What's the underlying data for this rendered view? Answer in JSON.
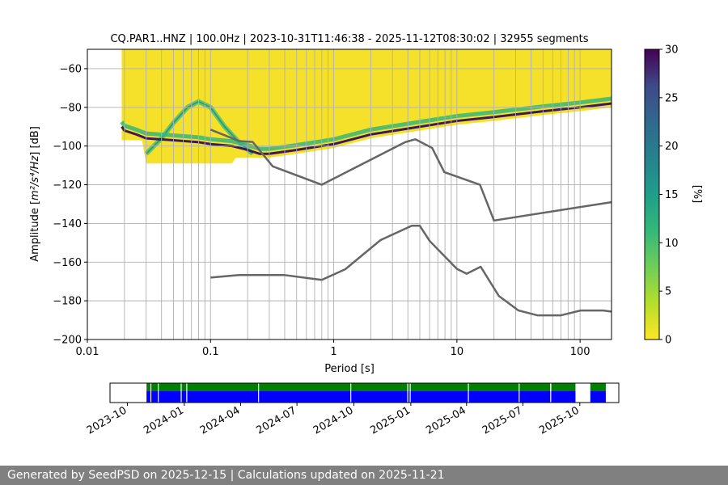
{
  "chart_data": [
    {
      "type": "heatmap",
      "title": "CQ.PAR1..HNZ | 100.0Hz | 2023-10-31T11:46:38 - 2025-11-12T08:30:02 | 32955 segments",
      "xlabel": "Period [s]",
      "ylabel_prefix": "Amplitude [",
      "ylabel_math": "m²/s⁴/Hz",
      "ylabel_suffix": "] [dB]",
      "xscale": "log",
      "xlim": [
        0.01,
        180
      ],
      "ylim": [
        -200,
        -50
      ],
      "x_ticks": [
        {
          "value": 0.01,
          "label": "0.01"
        },
        {
          "value": 0.1,
          "label": "0.1"
        },
        {
          "value": 1,
          "label": "1"
        },
        {
          "value": 10,
          "label": "10"
        },
        {
          "value": 100,
          "label": "100"
        }
      ],
      "y_ticks": [
        {
          "value": -60,
          "label": "−60"
        },
        {
          "value": -80,
          "label": "−80"
        },
        {
          "value": -100,
          "label": "−100"
        },
        {
          "value": -120,
          "label": "−120"
        },
        {
          "value": -140,
          "label": "−140"
        },
        {
          "value": -160,
          "label": "−160"
        },
        {
          "value": -180,
          "label": "−180"
        },
        {
          "value": -200,
          "label": "−200"
        }
      ],
      "grid": true,
      "x_gridlines": [
        0.02,
        0.03,
        0.04,
        0.05,
        0.06,
        0.07,
        0.08,
        0.09,
        0.1,
        0.2,
        0.3,
        0.4,
        0.5,
        0.6,
        0.7,
        0.8,
        0.9,
        1,
        2,
        3,
        4,
        5,
        6,
        7,
        8,
        9,
        10,
        20,
        30,
        40,
        50,
        60,
        70,
        80,
        90,
        100
      ],
      "colorbar": {
        "label": "[%]",
        "range": [
          0,
          30
        ],
        "colormap": "viridis_r",
        "ticks": [
          {
            "value": 0,
            "label": "0"
          },
          {
            "value": 5,
            "label": "5"
          },
          {
            "value": 10,
            "label": "10"
          },
          {
            "value": 15,
            "label": "15"
          },
          {
            "value": 20,
            "label": "20"
          },
          {
            "value": 25,
            "label": "25"
          },
          {
            "value": 30,
            "label": "30"
          }
        ]
      },
      "density_ridge": {
        "x": [
          0.019,
          0.02,
          0.025,
          0.03,
          0.05,
          0.08,
          0.1,
          0.15,
          0.2,
          0.25,
          0.3,
          0.5,
          1,
          2,
          5,
          10,
          20,
          50,
          100,
          180
        ],
        "y": [
          -90,
          -92,
          -94,
          -96,
          -97,
          -98,
          -99,
          -100,
          -102,
          -104,
          -104,
          -102,
          -99,
          -94,
          -90,
          -87,
          -85,
          -82,
          -80,
          -78
        ]
      },
      "series": [
        {
          "color": "#666666",
          "x": [
            0.1,
            0.17,
            0.22,
            0.32,
            0.8,
            3.8,
            4.6,
            6.3,
            7.9,
            15.4,
            20,
            180
          ],
          "y": [
            -91.5,
            -97.4,
            -97.9,
            -110.5,
            -120,
            -98,
            -96.5,
            -101,
            -113.5,
            -120,
            -138.5,
            -129
          ]
        },
        {
          "color": "#666666",
          "x": [
            0.1,
            0.17,
            0.4,
            0.8,
            1.24,
            2.4,
            4.3,
            5,
            6,
            10,
            12,
            15.6,
            21.9,
            31.6,
            45,
            70,
            101,
            154,
            180
          ],
          "y": [
            -168,
            -166.7,
            -166.7,
            -169.2,
            -163.7,
            -148.6,
            -141.2,
            -141.2,
            -149,
            -163.5,
            -166,
            -162.4,
            -177.5,
            -185,
            -187.5,
            -187.5,
            -185,
            -185,
            -185.6
          ]
        }
      ]
    },
    {
      "type": "bar",
      "x_ticks": [
        {
          "value": "2023-10-01",
          "label": "2023-10"
        },
        {
          "value": "2024-01-01",
          "label": "2024-01"
        },
        {
          "value": "2024-04-01",
          "label": "2024-04"
        },
        {
          "value": "2024-07-01",
          "label": "2024-07"
        },
        {
          "value": "2024-10-01",
          "label": "2024-10"
        },
        {
          "value": "2025-01-01",
          "label": "2025-01"
        },
        {
          "value": "2025-04-01",
          "label": "2025-04"
        },
        {
          "value": "2025-07-01",
          "label": "2025-07"
        },
        {
          "value": "2025-10-01",
          "label": "2025-10"
        }
      ],
      "xlim": [
        "2023-09-03",
        "2025-12-03"
      ],
      "coverage_green": [
        {
          "start": "2023-11-01",
          "end": "2025-08-14"
        },
        {
          "start": "2025-08-16",
          "end": "2025-09-24"
        },
        {
          "start": "2025-10-18",
          "end": "2025-11-12"
        }
      ],
      "coverage_blue": [
        {
          "start": "2023-11-01",
          "end": "2025-09-24"
        },
        {
          "start": "2025-10-18",
          "end": "2025-11-12"
        }
      ],
      "gap_markers": [
        "2023-11-08",
        "2023-11-20",
        "2023-12-27",
        "2024-01-05",
        "2024-04-30",
        "2024-09-26",
        "2024-12-27",
        "2024-12-31",
        "2025-04-04",
        "2025-06-25",
        "2025-08-15"
      ],
      "green_color": "#008000",
      "blue_color": "#0000ff"
    }
  ],
  "footer": {
    "text": "Generated by SeedPSD on 2025-12-15 | Calculations updated on 2025-11-21"
  }
}
